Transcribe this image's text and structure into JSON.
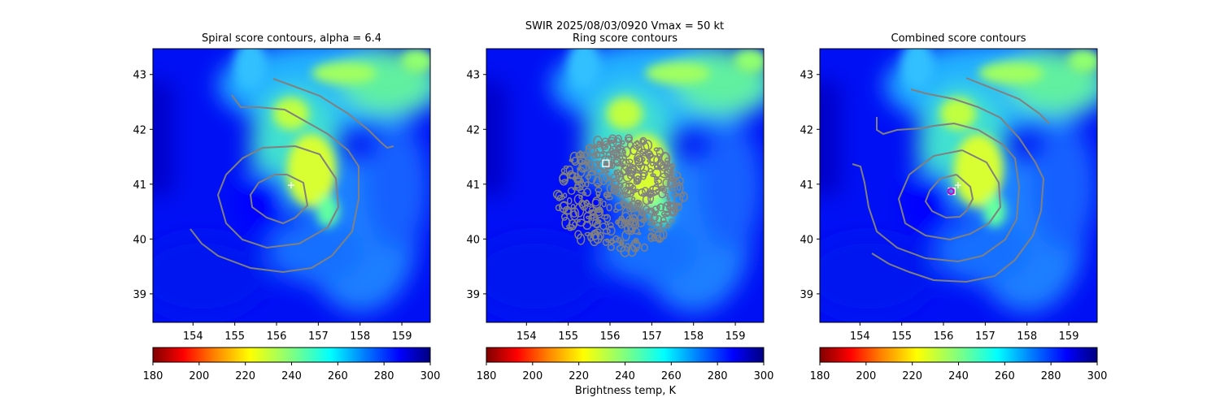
{
  "figure": {
    "suptitle_line1": "SWIR  2025/08/03/0920    Vmax = 50 kt",
    "colorbar_label": "Brightness temp, K"
  },
  "chart_data": {
    "type": "heatmap",
    "colormap": "jet_r",
    "contour_color": "#808080",
    "marker_color": "#ffffff",
    "center_marker_color": "#cc00cc",
    "panels": [
      {
        "title": "Spiral score contours, alpha =  6.4",
        "xlim": [
          153.04,
          159.68
        ],
        "ylim": [
          38.48,
          43.47
        ],
        "xticks": [
          "154",
          "155",
          "156",
          "157",
          "158",
          "159"
        ],
        "yticks": [
          "39",
          "40",
          "41",
          "42",
          "43"
        ],
        "cross_marker": [
          156.35,
          40.98
        ],
        "contour_type": "spiral"
      },
      {
        "title": "Ring score contours",
        "xlim": [
          153.04,
          159.68
        ],
        "ylim": [
          38.48,
          43.47
        ],
        "xticks": [
          "154",
          "155",
          "156",
          "157",
          "158",
          "159"
        ],
        "yticks": [
          "39",
          "40",
          "41",
          "42",
          "43"
        ],
        "square_marker": [
          155.9,
          41.38
        ],
        "contour_type": "ring"
      },
      {
        "title": "Combined score contours",
        "xlim": [
          153.04,
          159.68
        ],
        "ylim": [
          38.48,
          43.47
        ],
        "xticks": [
          "154",
          "155",
          "156",
          "157",
          "158",
          "159"
        ],
        "yticks": [
          "39",
          "40",
          "41",
          "42",
          "43"
        ],
        "cross_marker": [
          156.35,
          40.98
        ],
        "square_marker": [
          156.2,
          40.87
        ],
        "center_circle": [
          156.2,
          40.87
        ],
        "contour_type": "combined"
      }
    ],
    "colorbar": {
      "range": [
        180,
        300
      ],
      "ticks": [
        "180",
        "200",
        "220",
        "240",
        "260",
        "280",
        "300"
      ],
      "label": "Brightness temp, K"
    }
  }
}
